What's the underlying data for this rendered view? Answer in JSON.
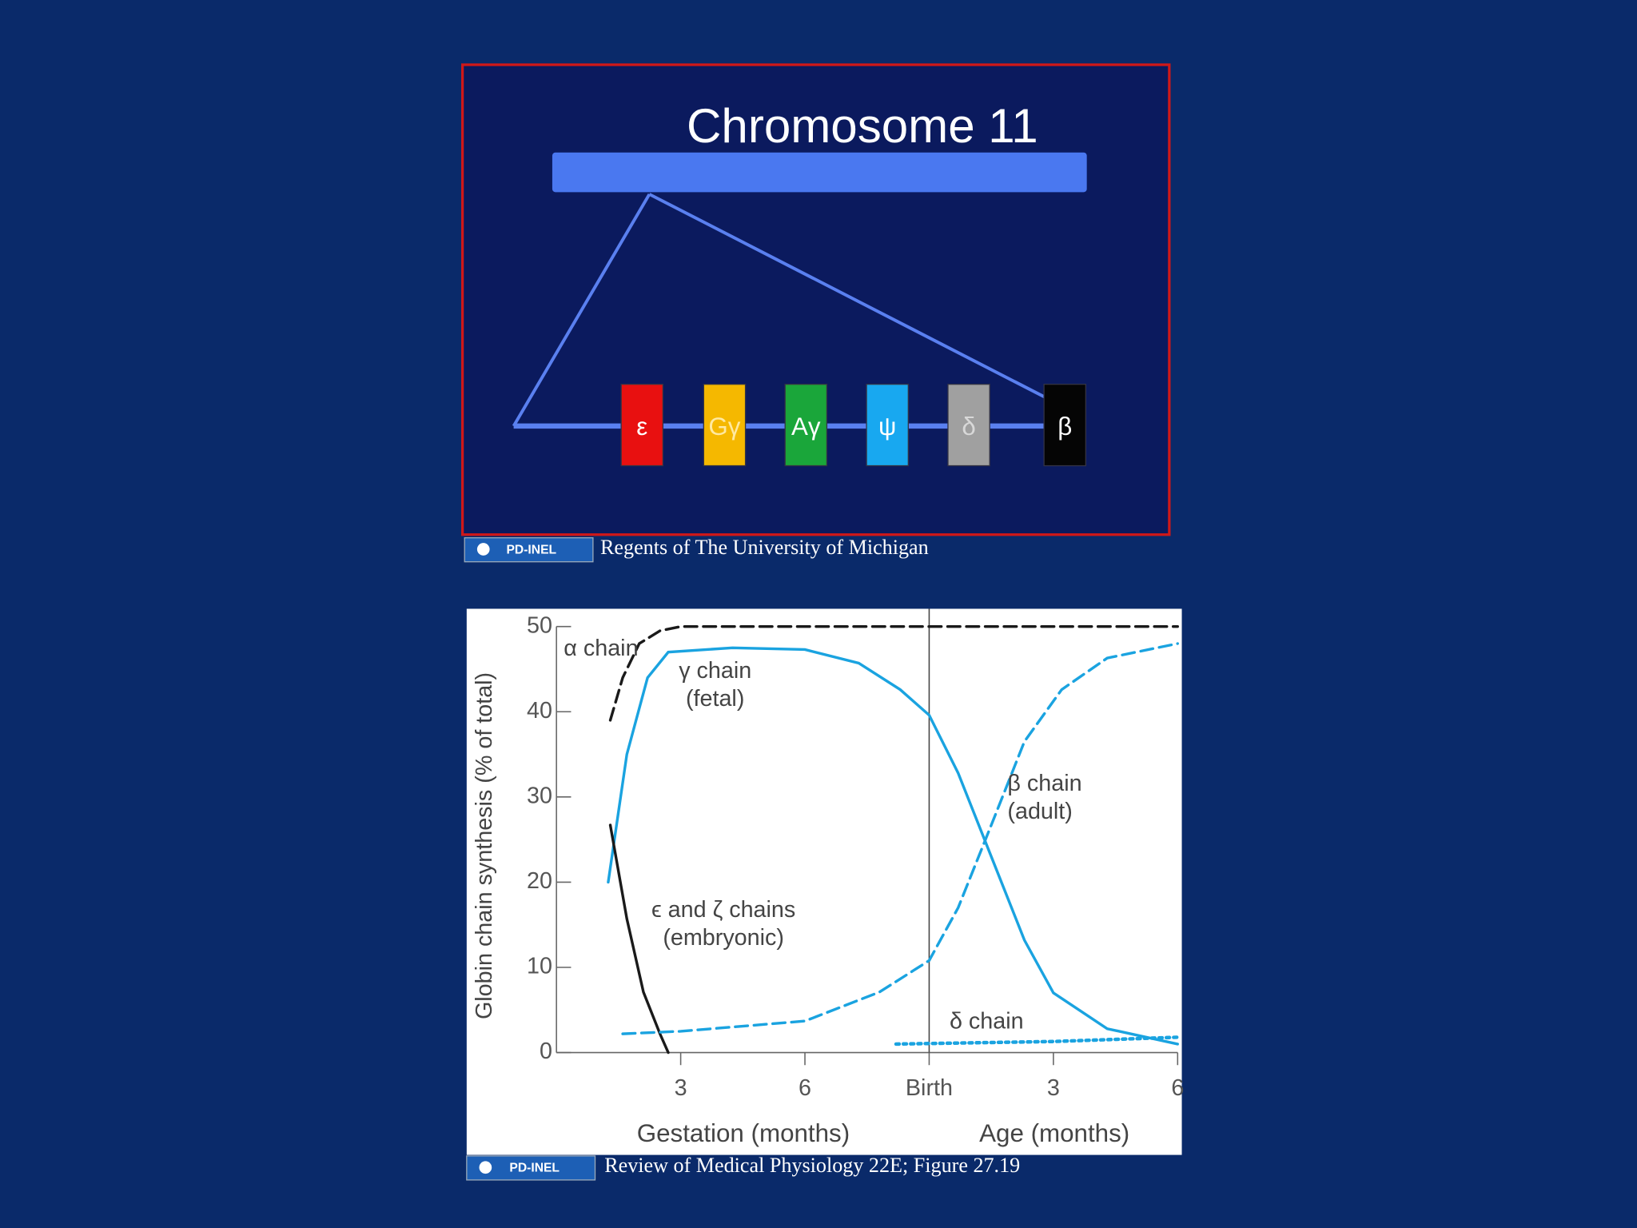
{
  "diagram": {
    "title": "Chromosome 11",
    "genes": [
      "ε",
      "Gγ",
      "Aγ",
      "ψ",
      "δ",
      "β"
    ]
  },
  "credits": [
    {
      "badge": "PD-INEL",
      "text": "Regents of The University of Michigan"
    },
    {
      "badge": "PD-INEL",
      "text": "Review of Medical Physiology 22E; Figure 27.19"
    }
  ],
  "chart_data": {
    "type": "line",
    "ylabel": "Globin chain synthesis (% of total)",
    "xlabels": [
      "Gestation (months)",
      "Age (months)"
    ],
    "xlim": [
      0,
      15
    ],
    "ylim": [
      0,
      50
    ],
    "xticks": [
      3,
      6,
      {
        "value": 9,
        "label": "Birth"
      },
      {
        "value": 12,
        "label": "3"
      },
      {
        "value": 15,
        "label": "6"
      }
    ],
    "yticks": [
      0,
      10,
      20,
      30,
      40,
      50
    ],
    "series": [
      {
        "name": "α chain",
        "color": "#1a1a1a",
        "line_style": "dashed",
        "x": [
          1.3,
          1.6,
          2.0,
          2.5,
          3,
          6,
          9,
          12,
          15
        ],
        "values": [
          39,
          44,
          48,
          49.5,
          50,
          50,
          50,
          50,
          50
        ]
      },
      {
        "name": "γ chain (fetal)",
        "color": "#1aa3e0",
        "line_style": "solid",
        "x": [
          1.25,
          1.7,
          2.2,
          2.7,
          4.25,
          6,
          7.3,
          8.3,
          9,
          9.7,
          10.5,
          11.3,
          12,
          13.3,
          15
        ],
        "values": [
          20,
          35,
          44,
          47,
          47.5,
          47.3,
          45.7,
          42.6,
          39.6,
          32.8,
          23,
          13.2,
          7,
          2.8,
          1
        ]
      },
      {
        "name": "ϵ and ζ chains (embryonic)",
        "color": "#1a1a1a",
        "line_style": "solid",
        "x": [
          1.3,
          1.7,
          2.1,
          2.5,
          2.7
        ],
        "values": [
          26.7,
          15.7,
          7.1,
          2.2,
          0
        ]
      },
      {
        "name": "β chain (adult)",
        "color": "#1aa3e0",
        "line_style": "dashed",
        "x": [
          1.6,
          3,
          6,
          7.8,
          9,
          9.7,
          10.5,
          11.3,
          12.2,
          13.3,
          15
        ],
        "values": [
          2.2,
          2.5,
          3.7,
          7.1,
          10.8,
          17,
          26.7,
          36.5,
          42.6,
          46.3,
          48
        ]
      },
      {
        "name": "δ chain",
        "color": "#1aa3e0",
        "line_style": "dotted",
        "x": [
          8.2,
          12,
          15
        ],
        "values": [
          1,
          1.3,
          1.8
        ]
      }
    ]
  }
}
